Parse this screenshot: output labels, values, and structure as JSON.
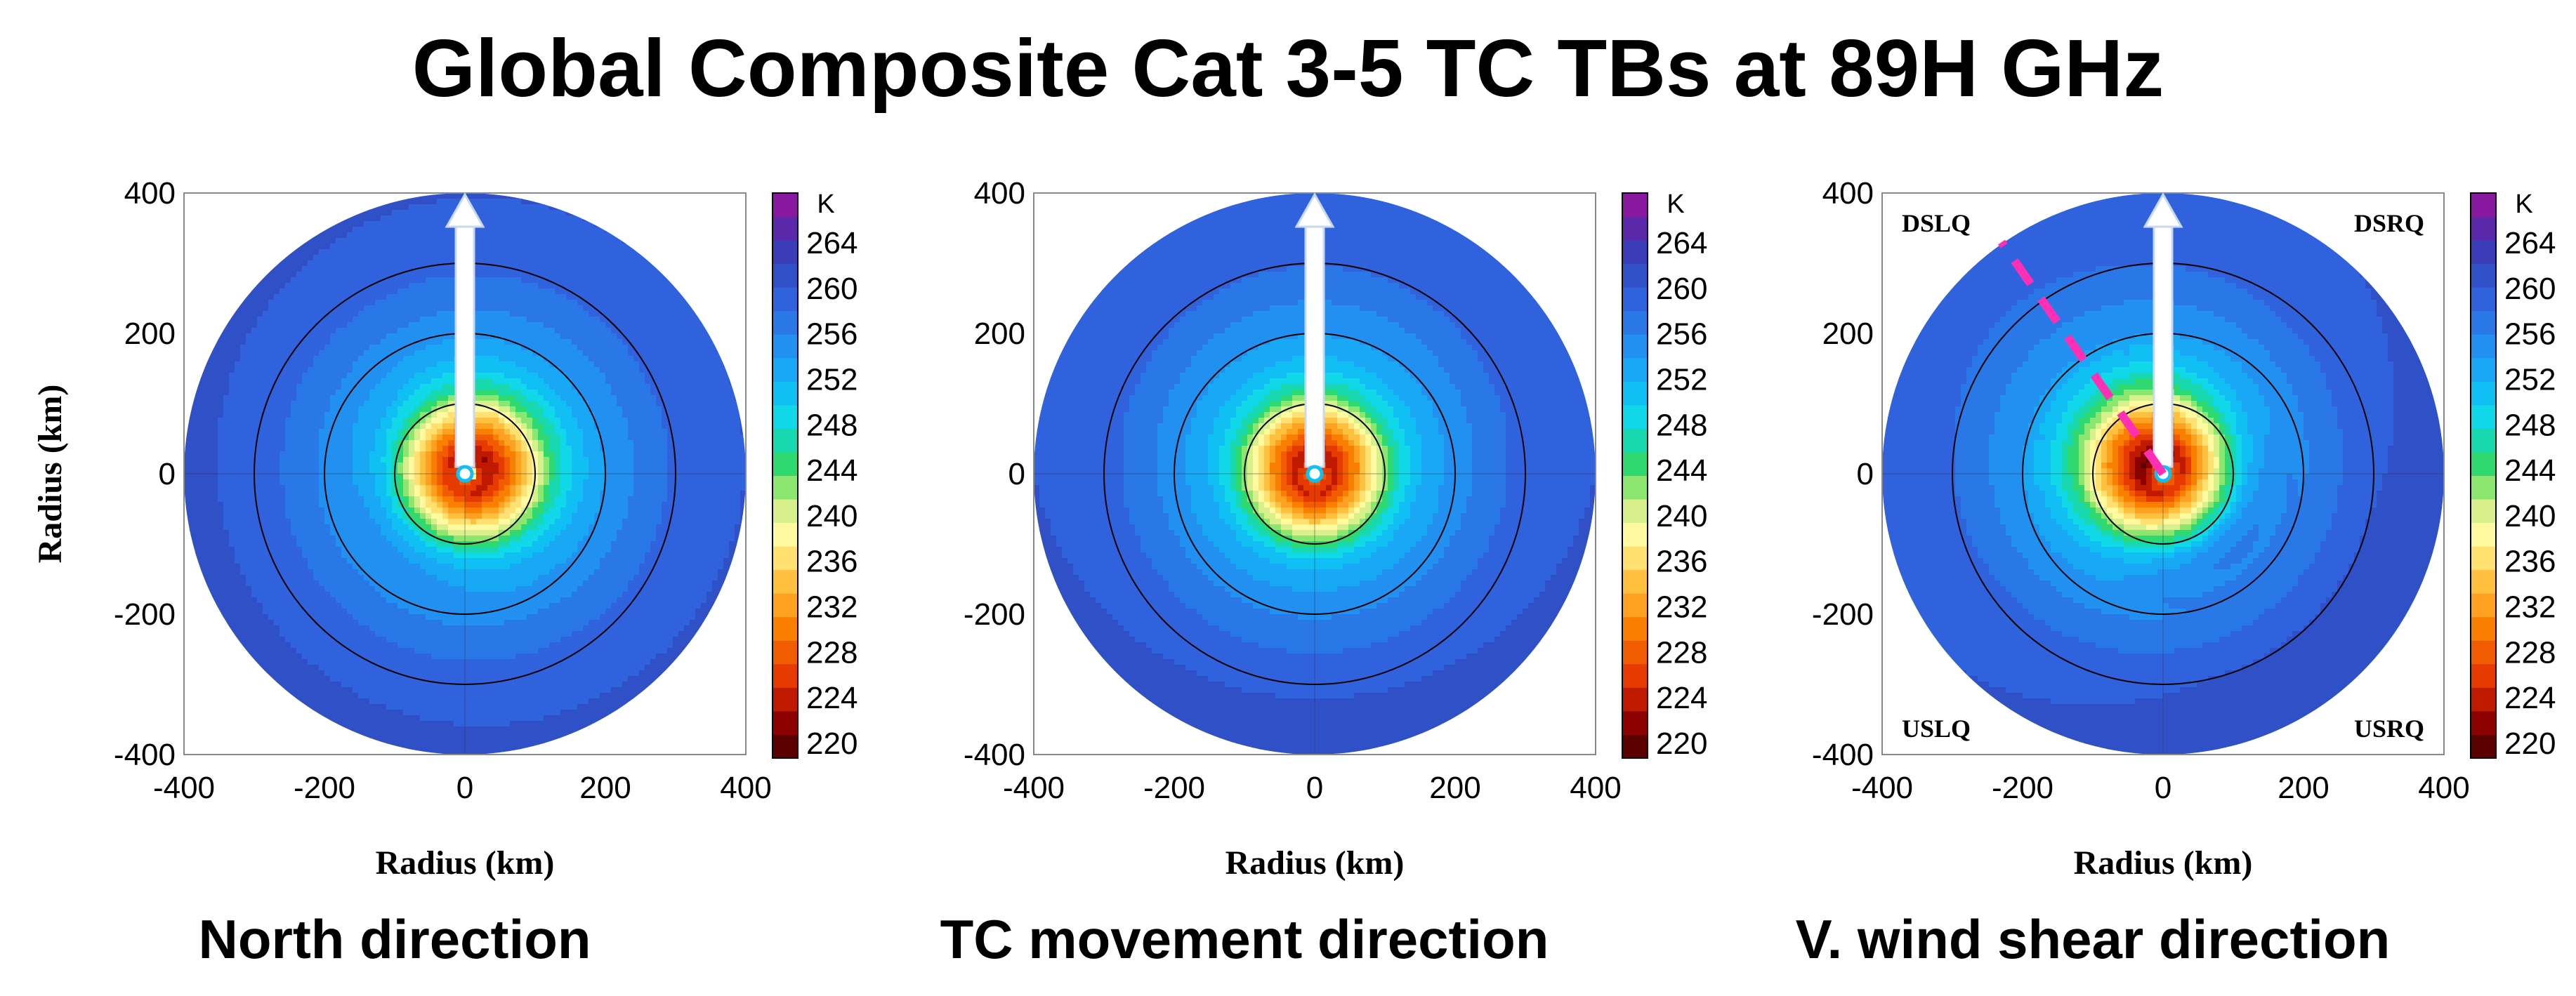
{
  "title": "Global Composite Cat 3-5 TC TBs at 89H GHz",
  "colors": {
    "ring": "#000000",
    "arrow_fill": "#ffffff",
    "arrow_edge": "#c8d8f0",
    "shear_line": "#ff2fb5",
    "frame": "#000000"
  },
  "colorbar": {
    "unit": "K",
    "ticks": [
      "264",
      "260",
      "256",
      "252",
      "248",
      "244",
      "240",
      "236",
      "232",
      "228",
      "224",
      "220"
    ],
    "levels": [
      220,
      222,
      224,
      226,
      228,
      230,
      232,
      234,
      236,
      238,
      240,
      242,
      244,
      246,
      248,
      250,
      252,
      254,
      256,
      258,
      260,
      262,
      264,
      266
    ],
    "colors": [
      "#5a0000",
      "#8c0000",
      "#bf1a00",
      "#e63a00",
      "#f25c00",
      "#fa7f00",
      "#fea020",
      "#ffc040",
      "#ffe070",
      "#fffaa0",
      "#d8f08c",
      "#8ce670",
      "#30d870",
      "#18d8b0",
      "#10d8e8",
      "#10c0f5",
      "#18a8f5",
      "#2290f0",
      "#2a78e8",
      "#2f62dc",
      "#3050c8",
      "#3a3cb8",
      "#5a28a8",
      "#8818a0"
    ]
  },
  "chart_data": [
    {
      "type": "heatmap",
      "subtitle": "North direction",
      "xlabel": "Radius (km)",
      "ylabel": "Radius (km)",
      "xticks": [
        "-400",
        "-200",
        "0",
        "200",
        "400"
      ],
      "yticks": [
        "400",
        "200",
        "0",
        "-200",
        "-400"
      ],
      "xlim": [
        -400,
        400
      ],
      "ylim": [
        -400,
        400
      ],
      "rings_km": [
        100,
        200,
        300
      ],
      "arrow_direction": "up",
      "eye_offset_km": [
        5,
        0
      ],
      "radial_profile": [
        [
          0,
          262
        ],
        [
          12,
          228
        ],
        [
          30,
          225
        ],
        [
          60,
          232
        ],
        [
          90,
          240
        ],
        [
          120,
          248
        ],
        [
          150,
          252
        ],
        [
          200,
          255
        ],
        [
          250,
          257
        ],
        [
          300,
          259
        ],
        [
          350,
          259.5
        ],
        [
          400,
          260.5
        ]
      ],
      "asymmetry": {
        "amplitude_K": 3,
        "cold_side_deg": 45,
        "outer_amplitude_K": 0.5
      }
    },
    {
      "type": "heatmap",
      "subtitle": "TC movement direction",
      "xlabel": "Radius (km)",
      "ylabel": "",
      "xticks": [
        "-400",
        "-200",
        "0",
        "200",
        "400"
      ],
      "yticks": [
        "400",
        "200",
        "0",
        "-200",
        "-400"
      ],
      "xlim": [
        -400,
        400
      ],
      "ylim": [
        -400,
        400
      ],
      "rings_km": [
        100,
        200,
        300
      ],
      "arrow_direction": "up",
      "eye_offset_km": [
        0,
        0
      ],
      "radial_profile": [
        [
          0,
          262
        ],
        [
          12,
          228
        ],
        [
          30,
          225
        ],
        [
          60,
          232
        ],
        [
          90,
          240
        ],
        [
          120,
          248
        ],
        [
          150,
          252
        ],
        [
          200,
          255
        ],
        [
          250,
          257
        ],
        [
          300,
          259
        ],
        [
          350,
          259.5
        ],
        [
          400,
          260
        ]
      ],
      "asymmetry": {
        "amplitude_K": 2,
        "cold_side_deg": 0,
        "outer_amplitude_K": 0.8
      }
    },
    {
      "type": "heatmap",
      "subtitle": "V. wind shear direction",
      "xlabel": "Radius (km)",
      "ylabel": "",
      "xticks": [
        "-400",
        "-200",
        "0",
        "200",
        "400"
      ],
      "yticks": [
        "400",
        "200",
        "0",
        "-200",
        "-400"
      ],
      "xlim": [
        -400,
        400
      ],
      "ylim": [
        -400,
        400
      ],
      "rings_km": [
        100,
        200,
        300
      ],
      "arrow_direction": "up",
      "eye_offset_km": [
        0,
        0
      ],
      "radial_profile": [
        [
          0,
          262
        ],
        [
          12,
          228
        ],
        [
          30,
          224
        ],
        [
          60,
          232
        ],
        [
          90,
          240
        ],
        [
          120,
          248
        ],
        [
          150,
          252
        ],
        [
          200,
          255
        ],
        [
          250,
          257
        ],
        [
          300,
          259
        ],
        [
          350,
          259.5
        ],
        [
          400,
          260
        ]
      ],
      "asymmetry": {
        "amplitude_K": 6,
        "cold_side_deg": -45,
        "outer_amplitude_K": 1.2
      },
      "quadrants": {
        "upper_left": "DSLQ",
        "upper_right": "DSRQ",
        "lower_left": "USLQ",
        "lower_right": "USRQ"
      },
      "shear_line": {
        "from_km": [
          0,
          0
        ],
        "to_km": [
          -230,
          330
        ]
      }
    }
  ]
}
